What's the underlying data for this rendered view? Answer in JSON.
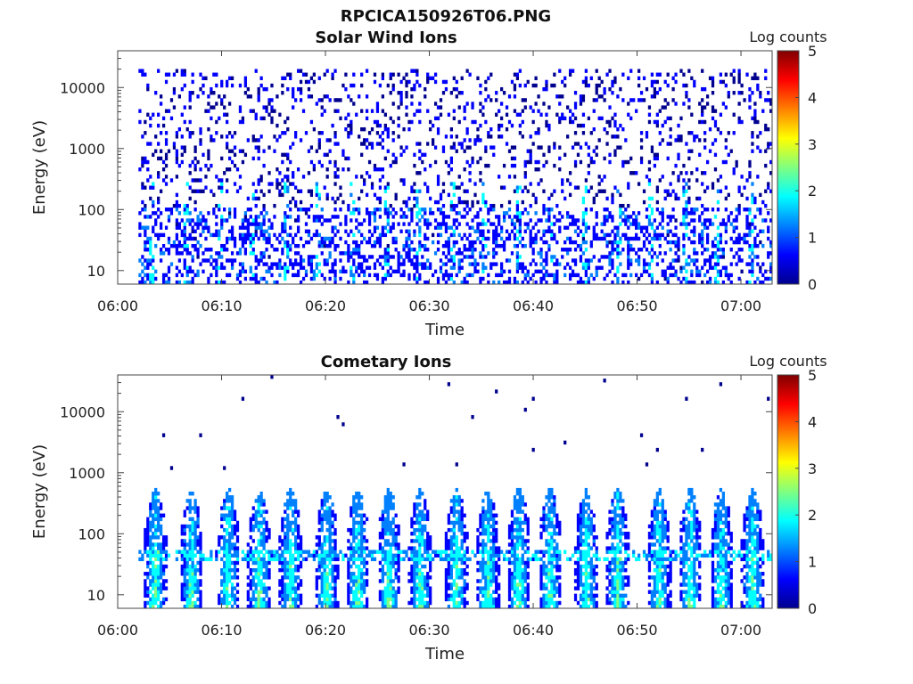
{
  "figure": {
    "title": "RPCICA150926T06.PNG"
  },
  "colormap": [
    "#00008f",
    "#0000ff",
    "#0080ff",
    "#00ffff",
    "#80ff80",
    "#ffff00",
    "#ff8000",
    "#ff0000",
    "#800000"
  ],
  "chart_data": [
    {
      "type": "heatmap",
      "title": "Solar Wind Ions",
      "xlabel": "Time",
      "ylabel": "Energy (eV)",
      "x_range": [
        "06:00",
        "07:03"
      ],
      "x_ticks": [
        "06:00",
        "06:10",
        "06:20",
        "06:30",
        "06:40",
        "06:50",
        "07:00"
      ],
      "y_scale": "log",
      "ylim": [
        6,
        40000
      ],
      "y_ticks": [
        10,
        100,
        1000,
        10000
      ],
      "y_tick_labels": [
        "10",
        "100",
        "1000",
        "10000"
      ],
      "colorbar": {
        "label": "Log counts",
        "range": [
          0,
          5
        ],
        "ticks": [
          "0",
          "1",
          "2",
          "3",
          "4",
          "5"
        ]
      },
      "data_start": "06:02",
      "data_end": "07:03",
      "pattern": "sparse background counts (log ~0-0.3) across 10-20000 eV; denser counts at 10-100 eV with periodic bursts reaching log ~1.5-2"
    },
    {
      "type": "heatmap",
      "title": "Cometary Ions",
      "xlabel": "Time",
      "ylabel": "Energy (eV)",
      "x_range": [
        "06:00",
        "07:03"
      ],
      "x_ticks": [
        "06:00",
        "06:10",
        "06:20",
        "06:30",
        "06:40",
        "06:50",
        "07:00"
      ],
      "y_scale": "log",
      "ylim": [
        6,
        40000
      ],
      "y_ticks": [
        10,
        100,
        1000,
        10000
      ],
      "y_tick_labels": [
        "10",
        "100",
        "1000",
        "10000"
      ],
      "colorbar": {
        "label": "Log counts",
        "range": [
          0,
          5
        ],
        "ticks": [
          "0",
          "1",
          "2",
          "3",
          "4",
          "5"
        ]
      },
      "data_start": "06:02",
      "data_end": "07:03",
      "burst_times": [
        "06:03.5",
        "06:07",
        "06:10.5",
        "06:13.5",
        "06:16.5",
        "06:20",
        "06:23",
        "06:26",
        "06:29",
        "06:32.5",
        "06:35.5",
        "06:38.5",
        "06:41.5",
        "06:45",
        "06:48",
        "06:52",
        "06:55",
        "06:58",
        "07:01"
      ],
      "burst_peak_log_counts": 2.8,
      "burst_energy_range_eV": [
        6,
        600
      ],
      "persistent_band_eV": 42
    }
  ]
}
